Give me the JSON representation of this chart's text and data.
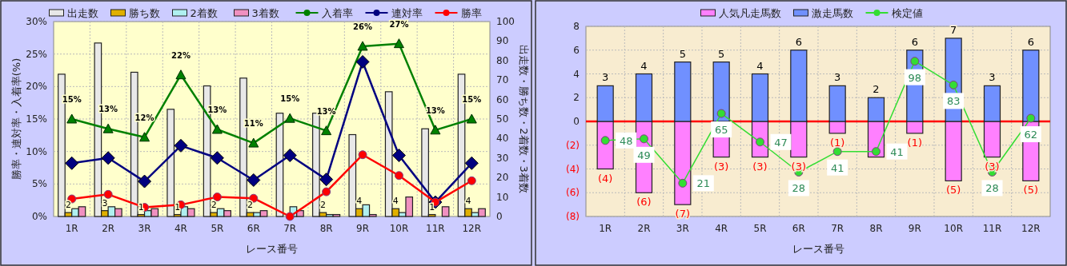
{
  "chart_data": [
    {
      "type": "bar",
      "categories": [
        "1R",
        "2R",
        "3R",
        "4R",
        "5R",
        "6R",
        "7R",
        "8R",
        "9R",
        "10R",
        "11R",
        "12R"
      ],
      "xlabel": "レース番号",
      "ylabel": "勝率・連対率・入着率(%)",
      "y2label": "出走数・勝ち数・2着数・3着数",
      "ylim": [
        0,
        30
      ],
      "yticks": [
        {
          "value": 0,
          "label": "0%"
        },
        {
          "value": 5,
          "label": "5%"
        },
        {
          "value": 10,
          "label": "10%"
        },
        {
          "value": 15,
          "label": "15%"
        },
        {
          "value": 20,
          "label": "20%"
        },
        {
          "value": 25,
          "label": "25%"
        },
        {
          "value": 30,
          "label": "30%"
        }
      ],
      "y2lim": [
        0,
        100
      ],
      "y2ticks": [
        0,
        10,
        20,
        30,
        40,
        50,
        60,
        70,
        80,
        90,
        100
      ],
      "grid": true,
      "legend": "top",
      "series": [
        {
          "name": "出走数",
          "type": "bar",
          "axis": "y2",
          "color": "#e8e8e8",
          "values": [
            73,
            89,
            74,
            55,
            67,
            71,
            53,
            53,
            42,
            64,
            45,
            73
          ]
        },
        {
          "name": "勝ち数",
          "type": "bar",
          "axis": "y2",
          "color": "#e0b000",
          "values": [
            2,
            3,
            1,
            1,
            2,
            2,
            0,
            2,
            4,
            4,
            1,
            4
          ],
          "value_labels": [
            "2",
            "3",
            "1",
            "1",
            "2",
            "2",
            null,
            "2",
            "4",
            "4",
            "1",
            "4"
          ]
        },
        {
          "name": "2着数",
          "type": "bar",
          "axis": "y2",
          "color": "#b0f0f0",
          "values": [
            4,
            5,
            3,
            5,
            4,
            2,
            5,
            1,
            6,
            2,
            0,
            2
          ]
        },
        {
          "name": "3着数",
          "type": "bar",
          "axis": "y2",
          "color": "#f090c0",
          "values": [
            5,
            4,
            4,
            4,
            3,
            3,
            3,
            1,
            1,
            10,
            5,
            4
          ]
        },
        {
          "name": "入着率",
          "type": "line",
          "marker": "triangle",
          "color": "#008000",
          "values": [
            15.0,
            13.5,
            12.2,
            21.8,
            13.4,
            11.3,
            15.1,
            13.2,
            26.2,
            26.6,
            13.3,
            15.0
          ],
          "value_labels": [
            "15%",
            "13%",
            "12%",
            "22%",
            "13%",
            "11%",
            "15%",
            "13%",
            "26%",
            "27%",
            "13%",
            "15%"
          ]
        },
        {
          "name": "連対率",
          "type": "line",
          "marker": "diamond",
          "color": "#000080",
          "values": [
            8.2,
            9.0,
            5.4,
            10.9,
            9.0,
            5.6,
            9.4,
            5.7,
            23.8,
            9.4,
            2.2,
            8.2
          ]
        },
        {
          "name": "勝率",
          "type": "line",
          "marker": "circle",
          "color": "#ff0000",
          "values": [
            2.7,
            3.4,
            1.4,
            1.8,
            3.0,
            2.8,
            0,
            3.8,
            9.5,
            6.3,
            2.2,
            5.5
          ]
        }
      ]
    },
    {
      "type": "bar",
      "stacked": true,
      "categories": [
        "1R",
        "2R",
        "3R",
        "4R",
        "5R",
        "6R",
        "7R",
        "8R",
        "9R",
        "10R",
        "11R",
        "12R"
      ],
      "xlabel": "レース番号",
      "ylim": [
        -8,
        8
      ],
      "yticks": [
        {
          "value": -8,
          "label": "(8)"
        },
        {
          "value": -6,
          "label": "(6)"
        },
        {
          "value": -4,
          "label": "(4)"
        },
        {
          "value": -2,
          "label": "(2)"
        },
        0,
        2,
        4,
        6,
        8
      ],
      "y2lim": [
        0,
        120
      ],
      "grid": true,
      "legend": "top",
      "ref_lines": [
        {
          "axis": "y",
          "value": 0,
          "color": "#ff0000"
        }
      ],
      "series": [
        {
          "name": "人気凡走馬数",
          "type": "bar",
          "color": "#ff80ff",
          "values": [
            -4,
            -6,
            -7,
            -3,
            -3,
            -3,
            -1,
            -3,
            -1,
            -5,
            -3,
            -5
          ],
          "value_labels": [
            "(4)",
            "(6)",
            "(7)",
            "(3)",
            "(3)",
            "(3)",
            "(1)",
            null,
            "(1)",
            "(5)",
            "(3)",
            "(5)"
          ]
        },
        {
          "name": "激走馬数",
          "type": "bar",
          "color": "#7090ff",
          "values": [
            3,
            4,
            5,
            5,
            4,
            6,
            3,
            2,
            6,
            7,
            3,
            6
          ],
          "value_labels": [
            "3",
            "4",
            "5",
            "5",
            "4",
            "6",
            "3",
            "2",
            "6",
            "7",
            "3",
            "6"
          ]
        },
        {
          "name": "検定値",
          "type": "line",
          "axis": "y2",
          "marker": "circle",
          "color": "#33dd33",
          "values": [
            48,
            49,
            21,
            65,
            47,
            28,
            41,
            41,
            98,
            83,
            28,
            62
          ],
          "value_labels": [
            "48",
            "49",
            "21",
            "65",
            "47",
            "28",
            "41",
            "41",
            "98",
            "83",
            "28",
            "62"
          ]
        }
      ]
    }
  ]
}
